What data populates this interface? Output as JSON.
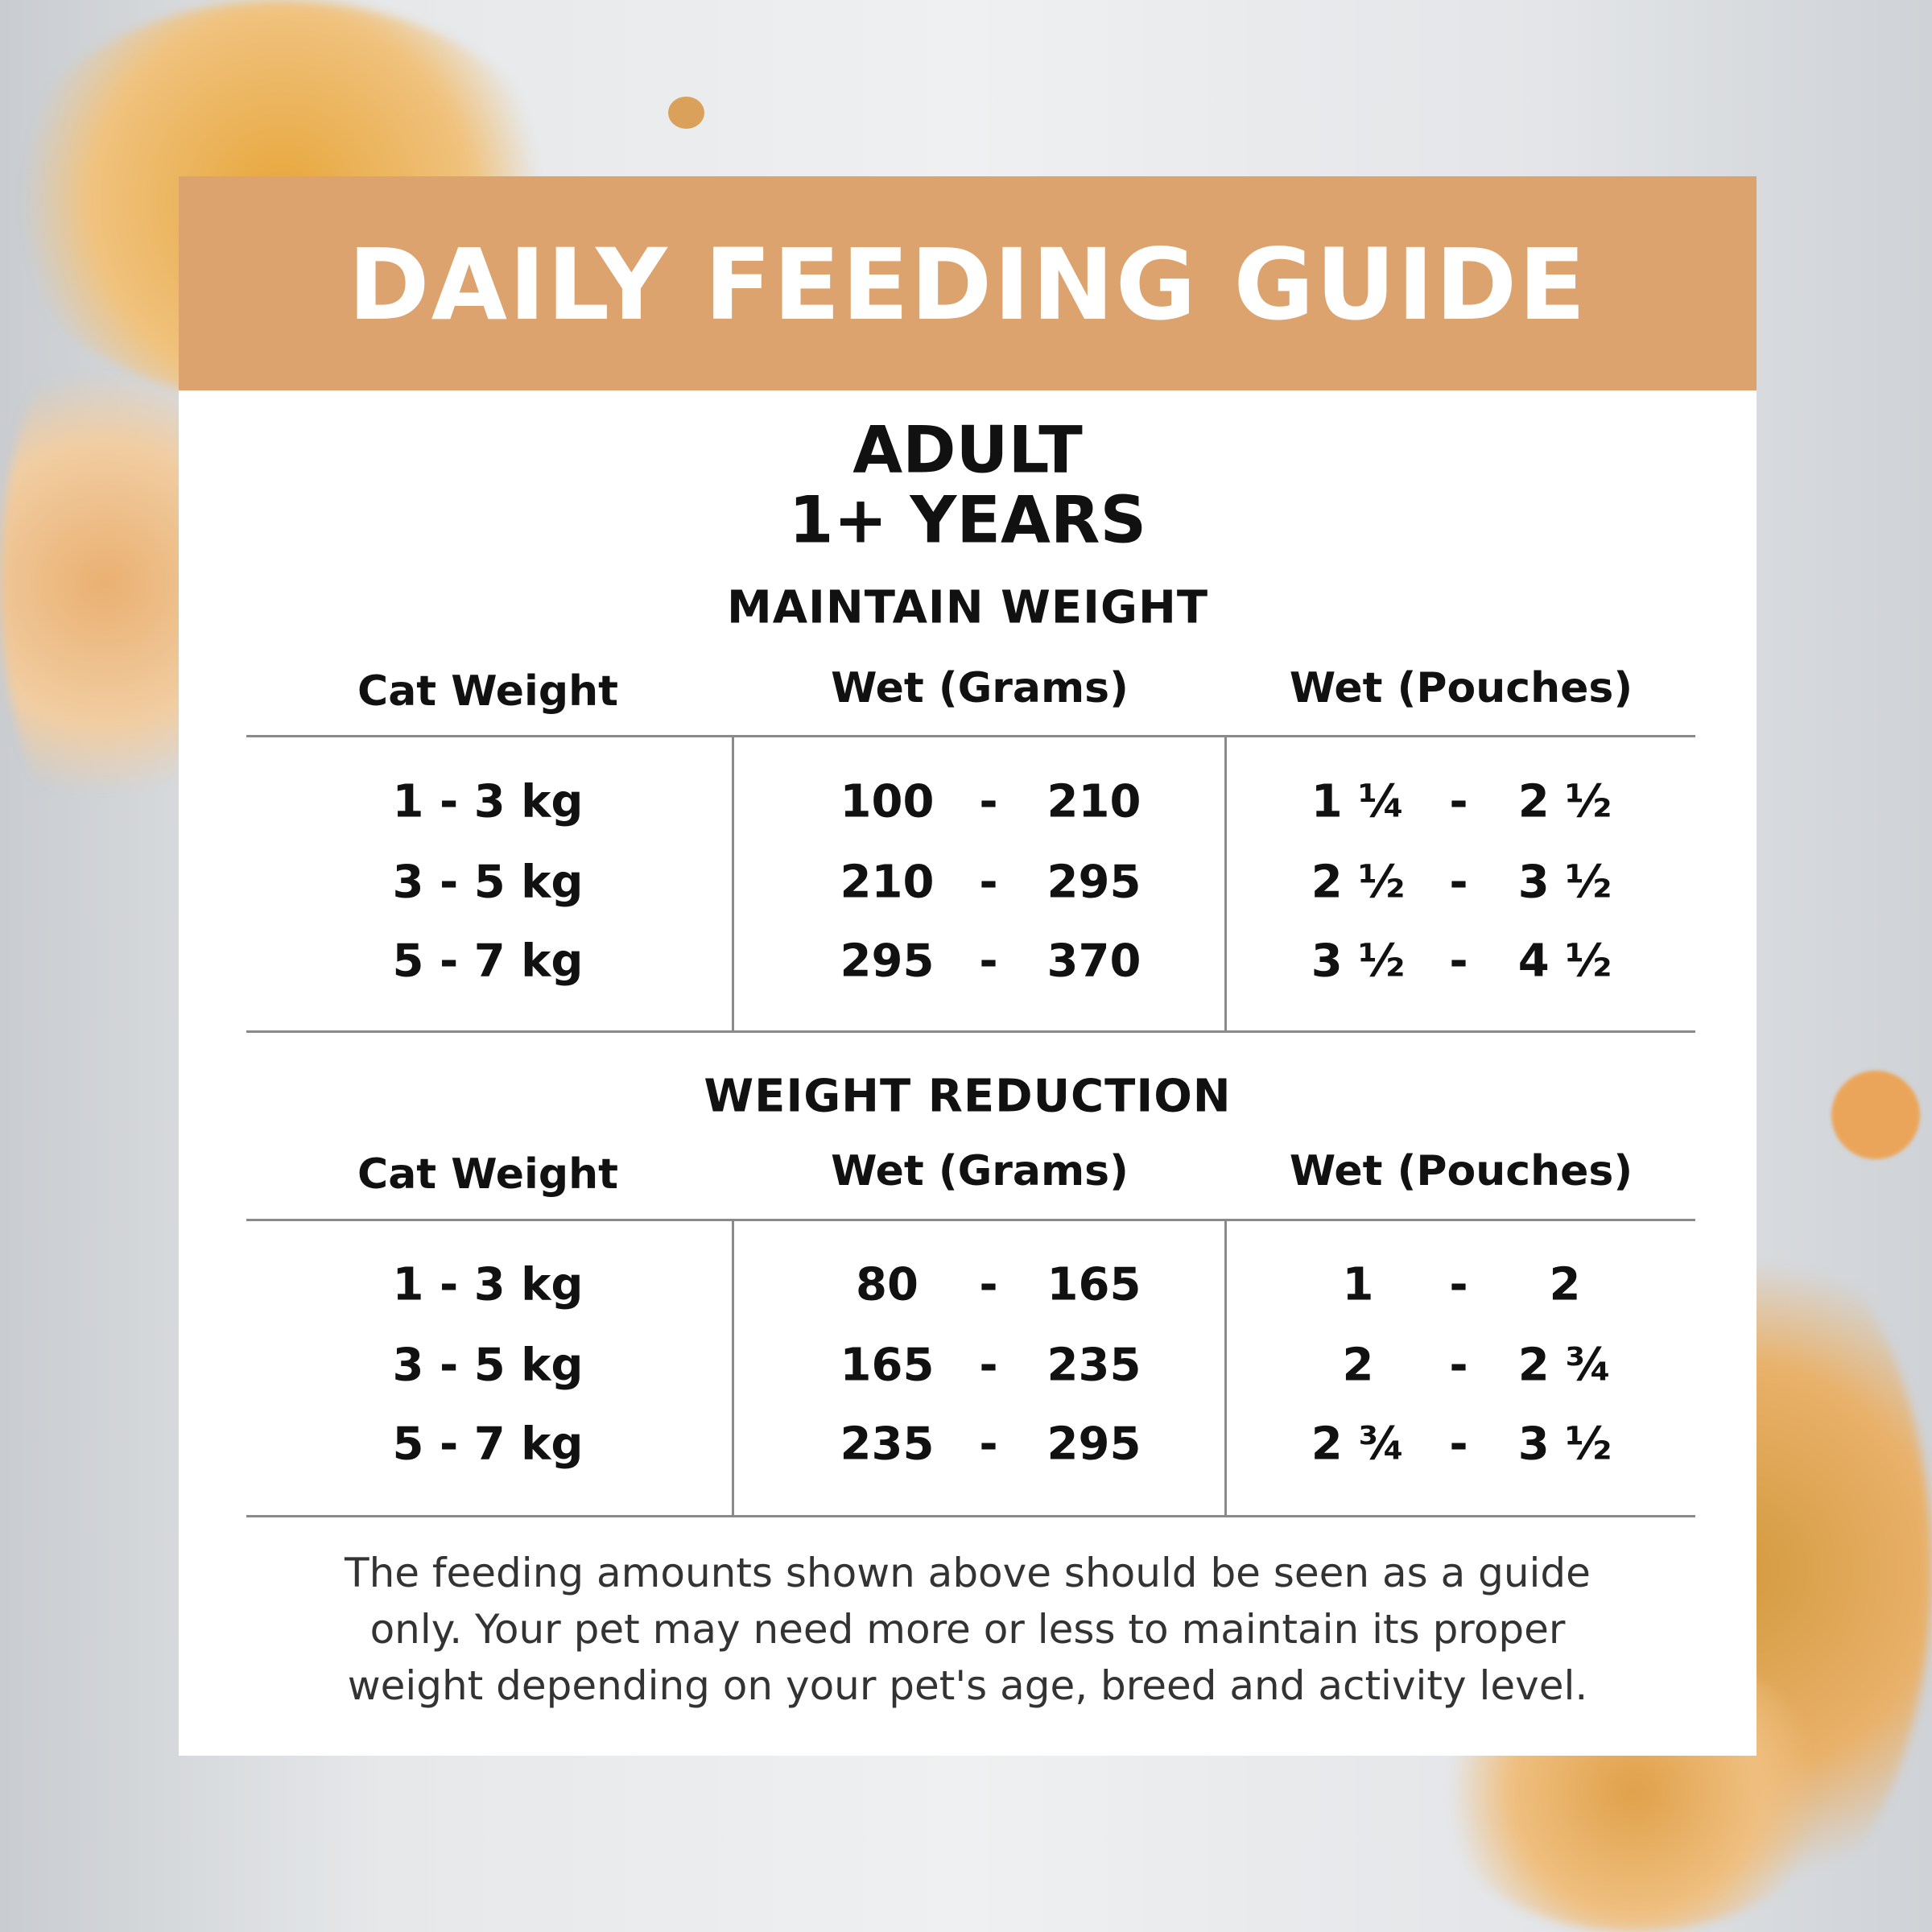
{
  "header": {
    "title": "DAILY FEEDING GUIDE",
    "bg_color": "#dca36e"
  },
  "life_stage": {
    "line1": "ADULT",
    "line2": "1+ YEARS"
  },
  "columns": [
    "Cat Weight",
    "Wet (Grams)",
    "Wet (Pouches)"
  ],
  "sections": [
    {
      "title": "MAINTAIN WEIGHT",
      "rows": [
        {
          "weight": "1 - 3 kg",
          "grams_min": "100",
          "grams_max": "210",
          "pouches_min": "1 ¼",
          "pouches_max": "2 ½"
        },
        {
          "weight": "3 - 5 kg",
          "grams_min": "210",
          "grams_max": "295",
          "pouches_min": "2 ½",
          "pouches_max": "3 ½"
        },
        {
          "weight": "5 - 7 kg",
          "grams_min": "295",
          "grams_max": "370",
          "pouches_min": "3 ½",
          "pouches_max": "4 ½"
        }
      ]
    },
    {
      "title": "WEIGHT REDUCTION",
      "rows": [
        {
          "weight": "1 - 3 kg",
          "grams_min": "80",
          "grams_max": "165",
          "pouches_min": "1",
          "pouches_max": "2"
        },
        {
          "weight": "3 - 5 kg",
          "grams_min": "165",
          "grams_max": "235",
          "pouches_min": "2",
          "pouches_max": "2 ¾"
        },
        {
          "weight": "5 - 7 kg",
          "grams_min": "235",
          "grams_max": "295",
          "pouches_min": "2 ¾",
          "pouches_max": "3 ½"
        }
      ]
    }
  ],
  "range_separator": "-",
  "footer": {
    "lines": [
      "The feeding amounts shown above should be seen as a guide",
      "only. Your pet may need more or less to maintain its proper",
      "weight depending on your pet's age, breed and activity level."
    ]
  }
}
